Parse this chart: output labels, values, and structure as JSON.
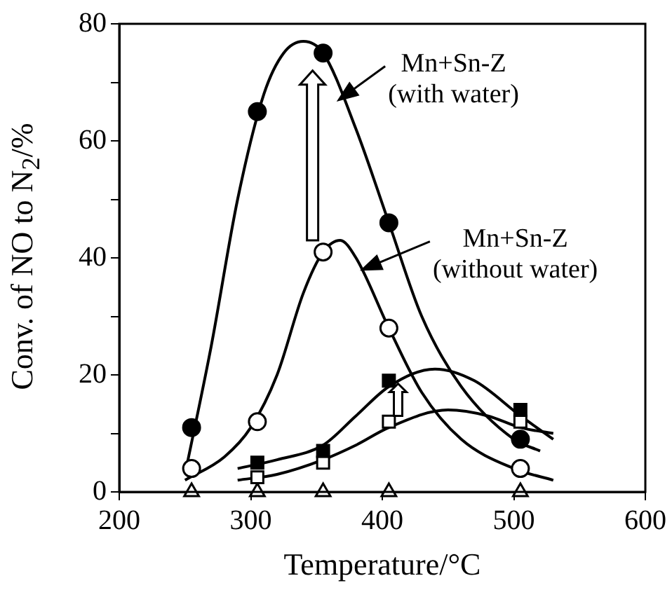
{
  "chart_data": {
    "type": "scatter",
    "xlabel": "Temperature/°C",
    "ylabel": "Conv. of NO to N$_{2}$/%",
    "xlim": [
      200,
      600
    ],
    "xticks": [
      200,
      300,
      400,
      500,
      600
    ],
    "ylim": [
      0,
      80
    ],
    "yticks": [
      0,
      {
        "value": 10,
        "label": null
      },
      20,
      {
        "value": 30,
        "label": null
      },
      40,
      {
        "value": 50,
        "label": null
      },
      60,
      {
        "value": 70,
        "label": null
      },
      80
    ],
    "grid": false,
    "legend": false,
    "series": [
      {
        "type": "line",
        "marker": "none",
        "color": "#000000",
        "x": [
          250,
          270,
          290,
          310,
          325,
          340,
          355,
          380,
          405,
          430,
          460,
          500,
          520
        ],
        "values": [
          3,
          25,
          50,
          68,
          75,
          77,
          75,
          62,
          46,
          30,
          18,
          9,
          7
        ]
      },
      {
        "type": "line",
        "marker": "none",
        "color": "#000000",
        "x": [
          250,
          280,
          300,
          320,
          340,
          355,
          368,
          380,
          405,
          430,
          460,
          500,
          530
        ],
        "values": [
          2,
          6,
          11,
          20,
          34,
          41,
          43,
          40,
          28,
          17,
          9,
          4,
          2
        ]
      },
      {
        "type": "line",
        "marker": "none",
        "color": "#000000",
        "x": [
          290,
          320,
          355,
          380,
          405,
          440,
          470,
          505,
          530
        ],
        "values": [
          4,
          5.5,
          8,
          13,
          18,
          21,
          19,
          13,
          9
        ]
      },
      {
        "type": "line",
        "marker": "none",
        "color": "#000000",
        "x": [
          290,
          320,
          355,
          380,
          405,
          450,
          480,
          505,
          530
        ],
        "values": [
          2,
          3,
          5.5,
          8,
          11,
          14,
          13,
          11,
          10
        ]
      },
      {
        "marker": "circle",
        "color": "#000000",
        "x": [
          255,
          305,
          355,
          405,
          505
        ],
        "values": [
          11,
          65,
          75,
          46,
          9
        ]
      },
      {
        "marker": "circle",
        "color": "#ffffff",
        "x": [
          255,
          305,
          355,
          405,
          505
        ],
        "values": [
          4,
          12,
          41,
          28,
          4
        ]
      },
      {
        "marker": "square",
        "color": "#000000",
        "x": [
          305,
          355,
          405,
          505
        ],
        "values": [
          5,
          7,
          19,
          14
        ]
      },
      {
        "marker": "square",
        "color": "#ffffff",
        "x": [
          305,
          355,
          405,
          505
        ],
        "values": [
          2.5,
          5,
          12,
          12
        ]
      },
      {
        "marker": "triangle",
        "color": "#ffffff",
        "x": [
          255,
          305,
          355,
          405,
          505
        ],
        "values": [
          0,
          0,
          0,
          0,
          0
        ]
      }
    ],
    "annotations": [
      {
        "text": "Mn+Sn-Z\n(with water)",
        "x": 367,
        "y": 67
      },
      {
        "text": "Mn+Sn-Z\n(without water)",
        "x": 385,
        "y": 38
      }
    ]
  }
}
